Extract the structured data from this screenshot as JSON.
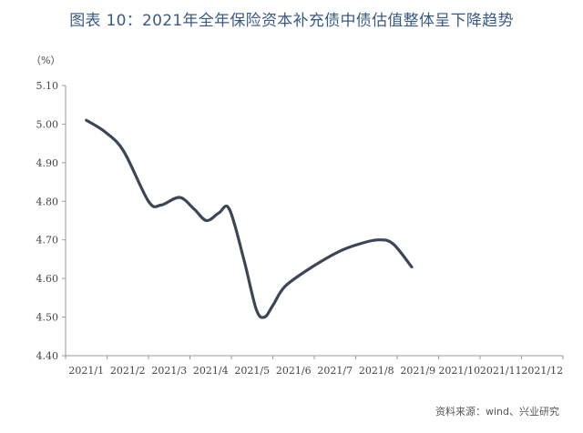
{
  "title": "图表 10：2021年全年保险资本补充债中债估值整体呈下降趋势",
  "source": "资料来源：wind、兴业研究",
  "chart_data": {
    "type": "line",
    "unit_label": "（%）",
    "xlabel": "",
    "ylabel": "",
    "categories": [
      "2021/1",
      "2021/2",
      "2021/3",
      "2021/4",
      "2021/5",
      "2021/6",
      "2021/7",
      "2021/8",
      "2021/9",
      "2021/10",
      "2021/11",
      "2021/12"
    ],
    "ylim": [
      4.4,
      5.1
    ],
    "yticks": [
      "4.40",
      "4.50",
      "4.60",
      "4.70",
      "4.80",
      "4.90",
      "5.00",
      "5.10"
    ],
    "grid": false,
    "legend": "none",
    "series": [
      {
        "color": "#3d4657",
        "points": [
          {
            "x": 0.0,
            "y": 5.01
          },
          {
            "x": 0.45,
            "y": 4.98
          },
          {
            "x": 0.9,
            "y": 4.93
          },
          {
            "x": 1.5,
            "y": 4.8
          },
          {
            "x": 1.8,
            "y": 4.79
          },
          {
            "x": 2.25,
            "y": 4.81
          },
          {
            "x": 2.6,
            "y": 4.78
          },
          {
            "x": 2.9,
            "y": 4.75
          },
          {
            "x": 3.2,
            "y": 4.77
          },
          {
            "x": 3.45,
            "y": 4.78
          },
          {
            "x": 3.8,
            "y": 4.65
          },
          {
            "x": 4.1,
            "y": 4.52
          },
          {
            "x": 4.3,
            "y": 4.5
          },
          {
            "x": 4.5,
            "y": 4.53
          },
          {
            "x": 4.8,
            "y": 4.58
          },
          {
            "x": 5.45,
            "y": 4.63
          },
          {
            "x": 6.1,
            "y": 4.67
          },
          {
            "x": 6.6,
            "y": 4.69
          },
          {
            "x": 7.05,
            "y": 4.7
          },
          {
            "x": 7.4,
            "y": 4.69
          },
          {
            "x": 7.85,
            "y": 4.63
          }
        ]
      }
    ]
  }
}
